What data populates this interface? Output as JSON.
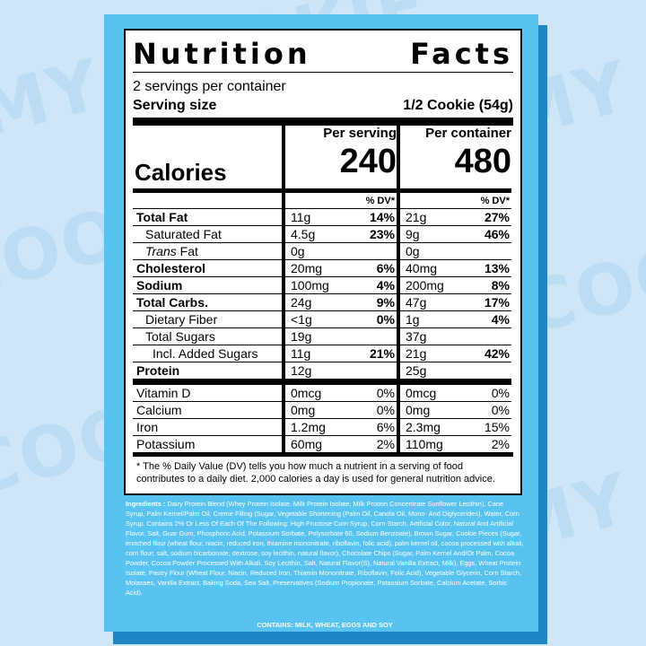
{
  "background": {
    "brand_text": "MY COOKIE dealer",
    "color": "#cfe6f8",
    "card_color": "#58c2f0",
    "card_shadow": "#1f88c4"
  },
  "label": {
    "title_left": "Nutrition",
    "title_right": "Facts",
    "servings_per_container": "2 servings per container",
    "serving_size_label": "Serving size",
    "serving_size_value": "1/2 Cookie (54g)",
    "calories_label": "Calories",
    "per_serving_label": "Per serving",
    "per_container_label": "Per container",
    "calories_per_serving": "240",
    "calories_per_container": "480",
    "dv_header": "% DV*",
    "nutrients": [
      {
        "name": "Total Fat",
        "serv": "11g",
        "serv_dv": "14%",
        "cont": "21g",
        "cont_dv": "27%"
      },
      {
        "name": "Saturated Fat",
        "serv": "4.5g",
        "serv_dv": "23%",
        "cont": "9g",
        "cont_dv": "46%"
      },
      {
        "name_italic": "Trans",
        "name": " Fat",
        "serv": "0g",
        "serv_dv": "",
        "cont": "0g",
        "cont_dv": ""
      },
      {
        "name": "Cholesterol",
        "serv": "20mg",
        "serv_dv": "6%",
        "cont": "40mg",
        "cont_dv": "13%"
      },
      {
        "name": "Sodium",
        "serv": "100mg",
        "serv_dv": "4%",
        "cont": "200mg",
        "cont_dv": "8%"
      },
      {
        "name": "Total Carbs.",
        "serv": "24g",
        "serv_dv": "9%",
        "cont": "47g",
        "cont_dv": "17%"
      },
      {
        "name": "Dietary Fiber",
        "serv": "<1g",
        "serv_dv": "0%",
        "cont": "1g",
        "cont_dv": "4%"
      },
      {
        "name": "Total Sugars",
        "serv": "19g",
        "serv_dv": "",
        "cont": "37g",
        "cont_dv": ""
      },
      {
        "name": "Incl. Added Sugars",
        "serv": "11g",
        "serv_dv": "21%",
        "cont": "21g",
        "cont_dv": "42%"
      },
      {
        "name": "Protein",
        "serv": "12g",
        "serv_dv": "",
        "cont": "25g",
        "cont_dv": ""
      }
    ],
    "vitamins": [
      {
        "name": "Vitamin D",
        "serv": "0mcg",
        "serv_dv": "0%",
        "cont": "0mcg",
        "cont_dv": "0%"
      },
      {
        "name": "Calcium",
        "serv": "0mg",
        "serv_dv": "0%",
        "cont": "0mg",
        "cont_dv": "0%"
      },
      {
        "name": "Iron",
        "serv": "1.2mg",
        "serv_dv": "6%",
        "cont": "2.3mg",
        "cont_dv": "15%"
      },
      {
        "name": "Potassium",
        "serv": "60mg",
        "serv_dv": "2%",
        "cont": "110mg",
        "cont_dv": "2%"
      }
    ],
    "footnote": "* The % Daily Value (DV) tells you how much a nutrient in a serving of food contributes to a daily diet. 2,000 calories a day is used for general nutrition advice."
  },
  "ingredients": {
    "label": "Ingredients :",
    "text": "Dairy Protein Blend (Whey Protein Isolate, Milk Protein Isolate, Milk Protein Concentrate Sunflower Lecithin), Cane Syrup, Palm Kernel/Palm Oil, Creme Filling (Sugar, Vegetable Shortening (Palm Oil, Canola Oil, Mono- And Diglycerides), Water, Corn Syrup. Contains 2% Or Less Of Each Of The Following: High Fructose Corn Syrup, Corn Starch, Artificial Color, Natural And Artificial Flavor, Salt, Guar Gum, Phosphoric Acid, Potassium Sorbate, Polysorbate 60, Sodium Benzoate), Brown Sugar, Cookie Pieces (Sugar, enriched flour (wheat flour, niacin, reduced iron, thiamine mononitrate, riboflavin, folic acid), palm kernel oil, cocoa processed with alkali, corn flour, salt, sodium bicarbonate, dextrose, soy lecithin, natural flavor), Chocolate Chips (Sugar, Palm Kernel And/Or Palm, Cocoa Powder, Cocoa Powder Processed With Alkali, Soy Lecithin, Salt, Natural Flavor(S), Natural Vanilla Extract, Milk), Eggs, Wheat Protein Isolate, Pastry Flour (Wheat Flour, Niacin, Reduced Iron, Thiamin Mononitrate, Riboflavin, Folic Acid), Vegetable Glycerin, Corn Starch, Molasses, Vanilla Extract, Baking Soda, Sea Salt, Preservatives (Sodium Propionate, Potassium Sorbate, Calcium Acetate, Sorbic Acid).",
    "contains": "CONTAINS: MILK, WHEAT, EGGS AND SOY"
  }
}
